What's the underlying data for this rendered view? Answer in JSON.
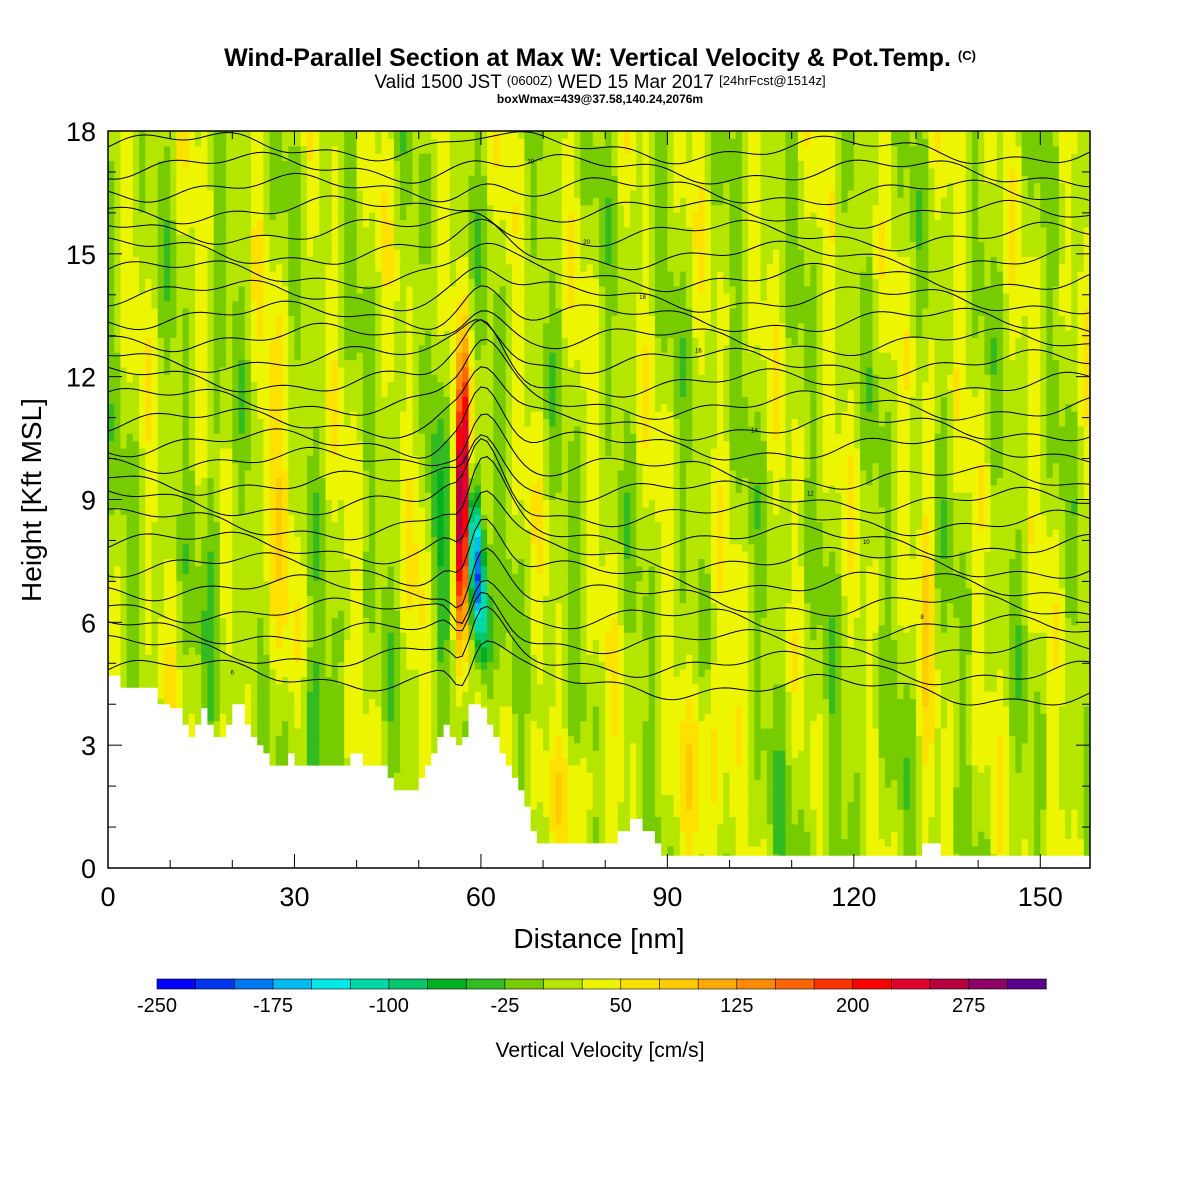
{
  "header": {
    "title_main": "Wind-Parallel Section at Max W: Vertical Velocity & Pot.Temp.",
    "title_copyright": "(C)",
    "valid_prefix": "Valid 1500 JST",
    "valid_utc": "(0600Z)",
    "valid_date": "WED 15 Mar 2017",
    "forecast": "[24hrFcst@1514z]",
    "box_info": "boxWmax=439@37.58,140.24,2076m"
  },
  "chart_data": {
    "type": "heatmap",
    "xlabel": "Distance [nm]",
    "ylabel": "Height [Kft MSL]",
    "xlim": [
      0,
      158
    ],
    "ylim": [
      0,
      18
    ],
    "x_ticks": [
      0,
      30,
      60,
      90,
      120,
      150
    ],
    "y_ticks": [
      0,
      3,
      6,
      9,
      12,
      15,
      18
    ],
    "colorbar": {
      "label": "Vertical Velocity [cm/s]",
      "min": -250,
      "max": 325,
      "step": 25,
      "tick_labels": [
        "-250",
        "-175",
        "-100",
        "-25",
        "50",
        "125",
        "200",
        "275"
      ],
      "colors": [
        "#0000ff",
        "#0033ee",
        "#0077ee",
        "#00bbf0",
        "#00e8e8",
        "#00d8a8",
        "#00c868",
        "#00b020",
        "#33bb22",
        "#77cc00",
        "#b4e600",
        "#eef500",
        "#ffe100",
        "#ffcc00",
        "#ffaa00",
        "#ff8c00",
        "#ff6600",
        "#ff3300",
        "#ff0000",
        "#e0002a",
        "#b8003e",
        "#8c0066",
        "#5a008c"
      ]
    },
    "terrain_kft": [
      [
        0,
        4.7
      ],
      [
        2,
        4.7
      ],
      [
        2,
        4.4
      ],
      [
        8,
        4.4
      ],
      [
        8,
        4.0
      ],
      [
        10,
        4.0
      ],
      [
        10,
        3.9
      ],
      [
        12,
        3.9
      ],
      [
        12,
        3.5
      ],
      [
        13,
        3.5
      ],
      [
        13,
        3.2
      ],
      [
        14,
        3.2
      ],
      [
        14,
        3.5
      ],
      [
        15,
        3.5
      ],
      [
        15,
        3.9
      ],
      [
        16,
        3.9
      ],
      [
        16,
        3.5
      ],
      [
        17,
        3.5
      ],
      [
        17,
        3.2
      ],
      [
        19,
        3.2
      ],
      [
        19,
        3.5
      ],
      [
        20,
        3.5
      ],
      [
        20,
        4.0
      ],
      [
        22,
        4.0
      ],
      [
        22,
        3.5
      ],
      [
        23,
        3.5
      ],
      [
        23,
        3.2
      ],
      [
        24,
        3.2
      ],
      [
        24,
        3.0
      ],
      [
        25,
        3.0
      ],
      [
        25,
        2.8
      ],
      [
        26,
        2.8
      ],
      [
        26,
        2.5
      ],
      [
        29,
        2.5
      ],
      [
        29,
        2.8
      ],
      [
        30,
        2.8
      ],
      [
        30,
        2.5
      ],
      [
        39,
        2.5
      ],
      [
        39,
        2.8
      ],
      [
        41,
        2.8
      ],
      [
        41,
        2.5
      ],
      [
        45,
        2.5
      ],
      [
        45,
        2.2
      ],
      [
        46,
        2.2
      ],
      [
        46,
        1.9
      ],
      [
        50,
        1.9
      ],
      [
        50,
        2.2
      ],
      [
        51,
        2.2
      ],
      [
        51,
        2.5
      ],
      [
        52,
        2.5
      ],
      [
        52,
        2.8
      ],
      [
        53,
        2.8
      ],
      [
        53,
        3.2
      ],
      [
        54,
        3.2
      ],
      [
        54,
        3.5
      ],
      [
        55,
        3.5
      ],
      [
        55,
        3.2
      ],
      [
        56,
        3.2
      ],
      [
        56,
        3.0
      ],
      [
        57,
        3.0
      ],
      [
        57,
        3.2
      ],
      [
        58,
        3.2
      ],
      [
        58,
        4.0
      ],
      [
        60,
        4.0
      ],
      [
        60,
        3.9
      ],
      [
        61,
        3.9
      ],
      [
        61,
        3.5
      ],
      [
        62,
        3.5
      ],
      [
        62,
        3.2
      ],
      [
        63,
        3.2
      ],
      [
        63,
        2.8
      ],
      [
        64,
        2.8
      ],
      [
        64,
        2.5
      ],
      [
        65,
        2.5
      ],
      [
        65,
        2.2
      ],
      [
        66,
        2.2
      ],
      [
        66,
        1.9
      ],
      [
        67,
        1.9
      ],
      [
        67,
        1.5
      ],
      [
        68,
        1.5
      ],
      [
        68,
        0.9
      ],
      [
        69,
        0.9
      ],
      [
        69,
        0.6
      ],
      [
        82,
        0.6
      ],
      [
        82,
        0.9
      ],
      [
        84,
        0.9
      ],
      [
        84,
        1.2
      ],
      [
        86,
        1.2
      ],
      [
        86,
        0.9
      ],
      [
        88,
        0.9
      ],
      [
        88,
        0.6
      ],
      [
        89,
        0.6
      ],
      [
        89,
        0.3
      ],
      [
        90,
        0.3
      ],
      [
        90,
        0.3
      ],
      [
        131,
        0.3
      ],
      [
        131,
        0.6
      ],
      [
        134,
        0.6
      ],
      [
        134,
        0.3
      ],
      [
        158,
        0.3
      ]
    ],
    "theta_contour_labels": [
      "6",
      "8",
      "10",
      "12",
      "14",
      "16",
      "18",
      "20"
    ]
  }
}
